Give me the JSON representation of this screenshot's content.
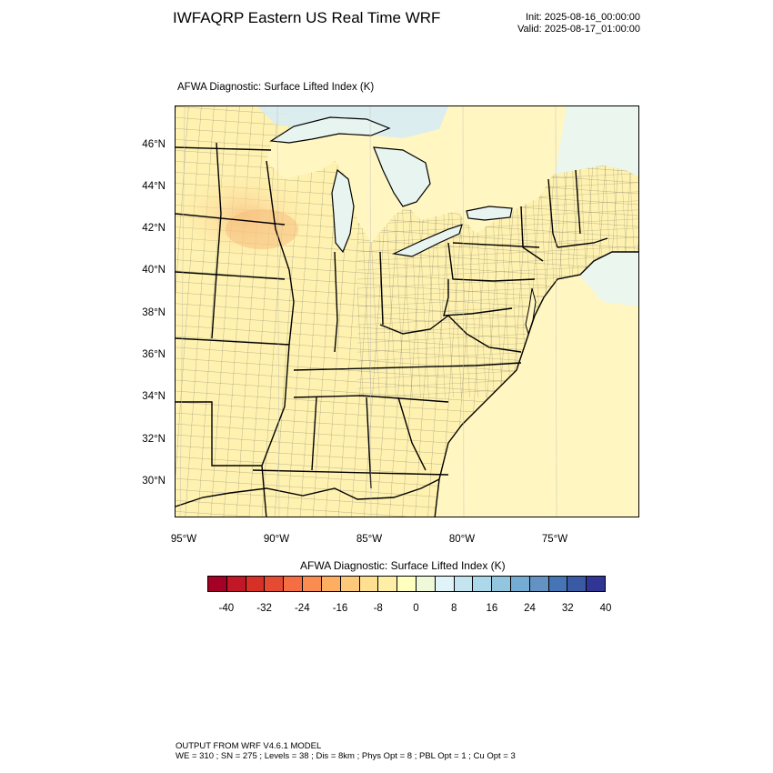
{
  "title": "IWFAQRP Eastern US Real Time WRF",
  "init_line": "Init: 2025-08-16_00:00:00",
  "valid_line": "Valid: 2025-08-17_01:00:00",
  "map": {
    "subtitle": "AFWA Diagnostic: Surface Lifted Index   (K)",
    "lat_labels": [
      "46°N",
      "44°N",
      "42°N",
      "40°N",
      "38°N",
      "36°N",
      "34°N",
      "32°N",
      "30°N"
    ],
    "lon_labels": [
      "95°W",
      "90°W",
      "85°W",
      "80°W",
      "75°W"
    ],
    "colors": {
      "land_default": "#fff2b0",
      "water_lakes": "#e8f4ef",
      "ocean": "#fff6c2",
      "ocean_north": "#eaf6ee",
      "negative_zone": "#fbd690",
      "cool_zone": "#d8ecf4",
      "state_lines": "#000000",
      "county_lines": "#333333"
    }
  },
  "colorbar": {
    "title": "AFWA Diagnostic: Surface Lifted Index  (K)",
    "colors": [
      "#a50026",
      "#c11727",
      "#d73027",
      "#e54a33",
      "#f46d43",
      "#f88c51",
      "#fdae61",
      "#fec87a",
      "#fee090",
      "#ffefa6",
      "#ffffbf",
      "#eff8d9",
      "#e0f3f8",
      "#c4e5f0",
      "#abd9e9",
      "#92c5de",
      "#74add1",
      "#6492c3",
      "#4575b4",
      "#3a5ba4",
      "#313695"
    ],
    "labels": [
      "-40",
      "-32",
      "-24",
      "-16",
      "-8",
      "0",
      "8",
      "16",
      "24",
      "32",
      "40"
    ]
  },
  "footer": {
    "line1": "OUTPUT FROM WRF V4.6.1 MODEL",
    "line2": "WE = 310 ; SN = 275 ; Levels = 38 ; Dis = 8km ; Phys Opt = 8 ; PBL Opt = 1 ; Cu Opt = 3"
  }
}
